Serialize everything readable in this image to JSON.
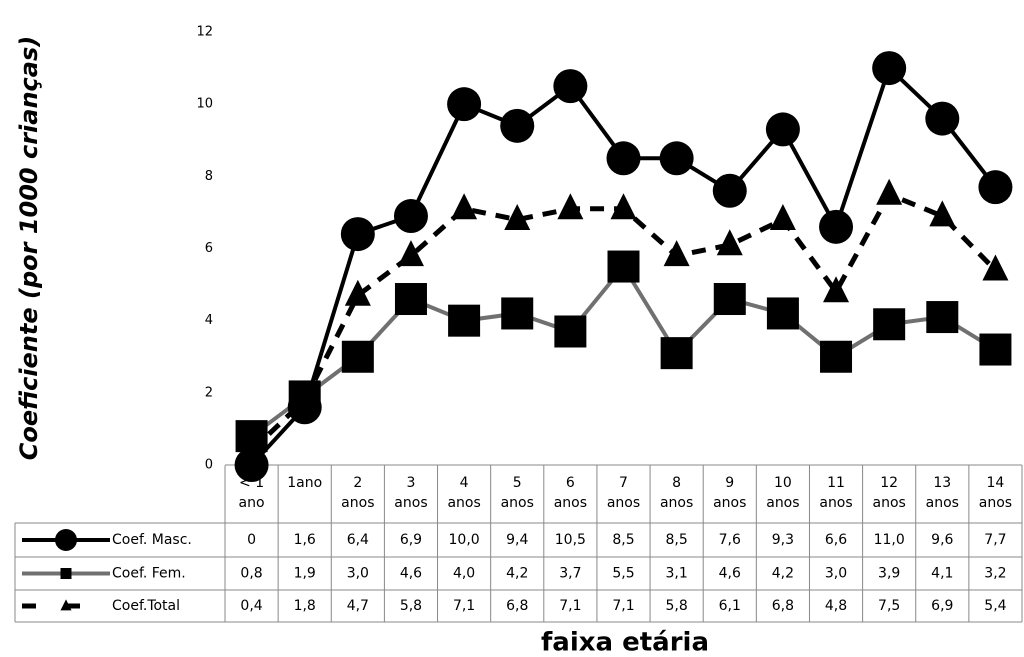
{
  "chart_data": {
    "type": "line",
    "y_label": "Coeficiente (por 1000 crianças)",
    "x_label": "faixa etária",
    "categories": [
      "< 1 ano",
      "1ano",
      "2 anos",
      "3 anos",
      "4 anos",
      "5 anos",
      "6 anos",
      "7 anos",
      "8 anos",
      "9 anos",
      "10 anos",
      "11 anos",
      "12 anos",
      "13 anos",
      "14 anos"
    ],
    "ylim": [
      0,
      12
    ],
    "yticks": [
      0,
      2,
      4,
      6,
      8,
      10,
      12
    ],
    "series": [
      {
        "name": "Coef. Masc.",
        "color": "#000000",
        "marker": "circle",
        "dash": false,
        "values": [
          0,
          1.6,
          6.4,
          6.9,
          10.0,
          9.4,
          10.5,
          8.5,
          8.5,
          7.6,
          9.3,
          6.6,
          11.0,
          9.6,
          7.7
        ],
        "value_labels": [
          "0",
          "1,6",
          "6,4",
          "6,9",
          "10,0",
          "9,4",
          "10,5",
          "8,5",
          "8,5",
          "7,6",
          "9,3",
          "6,6",
          "11,0",
          "9,6",
          "7,7"
        ]
      },
      {
        "name": "Coef. Fem.",
        "color": "#707070",
        "marker": "square",
        "dash": false,
        "values": [
          0.8,
          1.9,
          3.0,
          4.6,
          4.0,
          4.2,
          3.7,
          5.5,
          3.1,
          4.6,
          4.2,
          3.0,
          3.9,
          4.1,
          3.2
        ],
        "value_labels": [
          "0,8",
          "1,9",
          "3,0",
          "4,6",
          "4,0",
          "4,2",
          "3,7",
          "5,5",
          "3,1",
          "4,6",
          "4,2",
          "3,0",
          "3,9",
          "4,1",
          "3,2"
        ]
      },
      {
        "name": "Coef.Total",
        "color": "#000000",
        "marker": "triangle",
        "dash": true,
        "values": [
          0.4,
          1.8,
          4.7,
          5.8,
          7.1,
          6.8,
          7.1,
          7.1,
          5.8,
          6.1,
          6.8,
          4.8,
          7.5,
          6.9,
          5.4
        ],
        "value_labels": [
          "0,4",
          "1,8",
          "4,7",
          "5,8",
          "7,1",
          "6,8",
          "7,1",
          "7,1",
          "5,8",
          "6,1",
          "6,8",
          "4,8",
          "7,5",
          "6,9",
          "5,4"
        ]
      }
    ]
  }
}
